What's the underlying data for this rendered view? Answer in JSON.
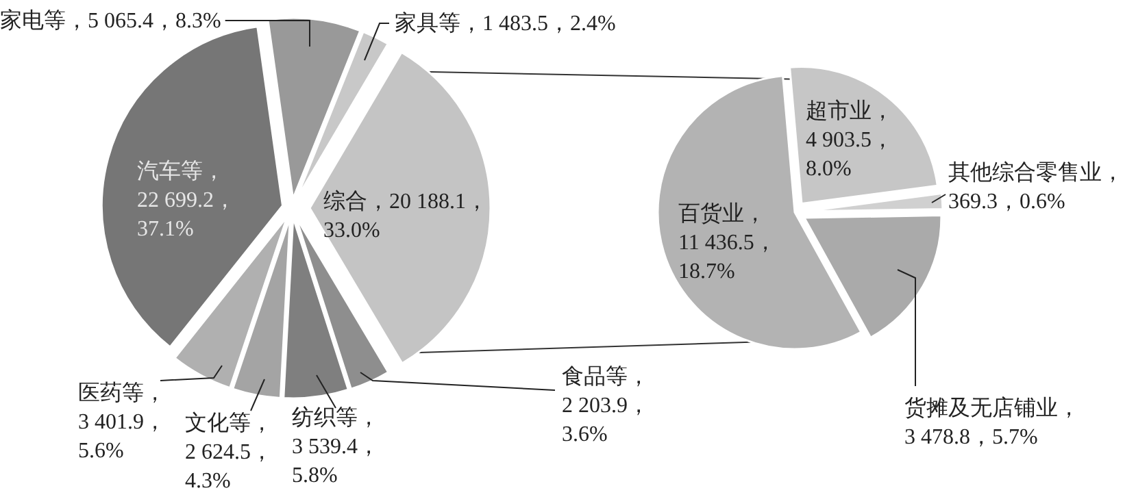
{
  "chart_data": [
    {
      "type": "pie",
      "categories": [
        "家电等",
        "家具等",
        "综合",
        "食品等",
        "纺织等",
        "文化等",
        "医药等",
        "汽车等"
      ],
      "values": [
        5065.4,
        1483.5,
        20188.1,
        2203.9,
        3539.4,
        2624.5,
        3401.9,
        22699.2
      ],
      "colors": [
        "#999999",
        "#c8c8c8",
        "#c4c4c4",
        "#8e8e8e",
        "#7f7f7f",
        "#a4a4a4",
        "#b0b0b0",
        "#767676"
      ],
      "value_labels": [
        "，5 065.4，8.3%",
        "，1 483.5，2.4%",
        "，20 188.1，33.0%",
        "，2 203.9，3.6%",
        "，3 539.4，5.8%",
        "，2 624.5，4.3%",
        "，3 401.9，5.6%",
        "，22 699.2，37.1%"
      ]
    },
    {
      "type": "pie",
      "categories": [
        "超市业",
        "其他综合零售业",
        "货摊及无店铺业",
        "百货业"
      ],
      "values": [
        4903.5,
        369.3,
        3478.8,
        11436.5
      ],
      "colors": [
        "#c6c6c6",
        "#d0d0d0",
        "#aaaaaa",
        "#b3b3b3"
      ],
      "value_labels": [
        "，4 903.5，8.0%",
        "，369.3，0.6%",
        "，3 478.8，5.7%",
        "，11 436.5，18.7%"
      ]
    }
  ]
}
